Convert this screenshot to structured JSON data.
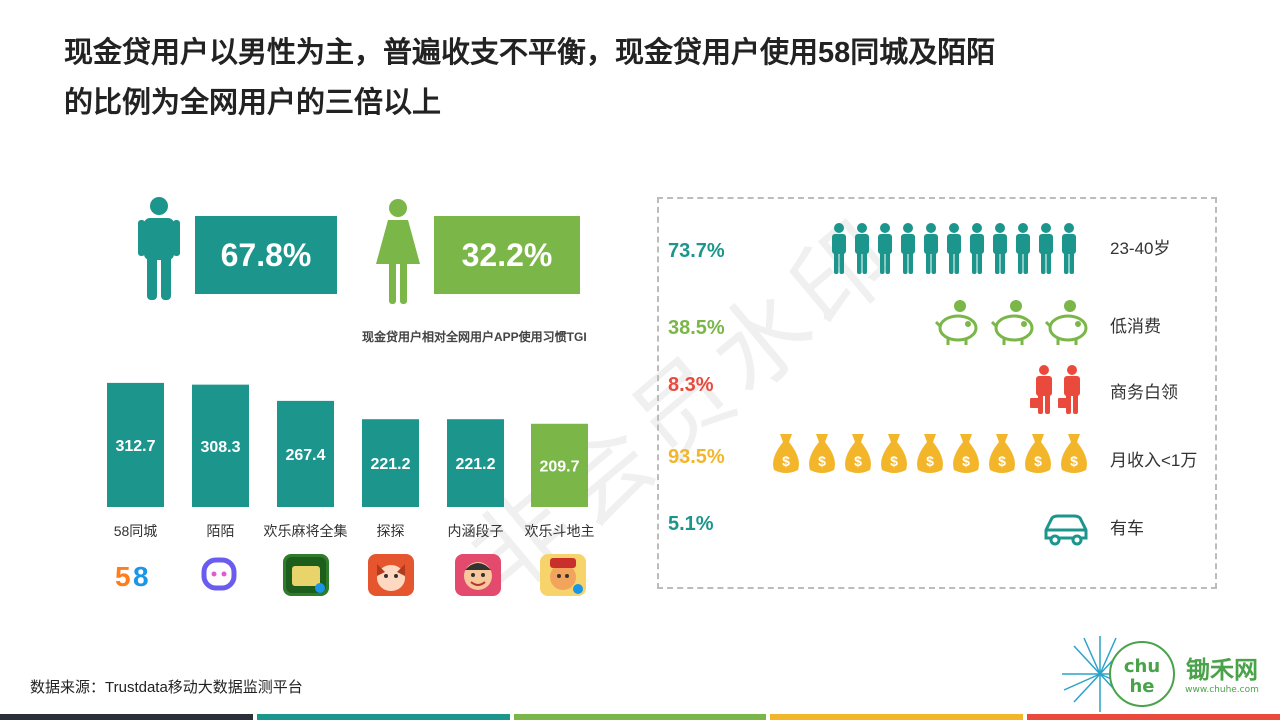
{
  "title": "现金贷用户以男性为主，普遍收支不平衡，现金贷用户使用58同城及陌陌的比例为全网用户的三倍以上",
  "title_line1": "现金贷用户以男性为主，普遍收支不平衡，现金贷用户使用58同城及陌陌",
  "title_line2": "的比例为全网用户的三倍以上",
  "watermark": "非会员水印",
  "gender": {
    "male_pct": "67.8%",
    "female_pct": "32.2%",
    "male_color": "#1c958c",
    "female_color": "#7ab648"
  },
  "chart_data": {
    "type": "bar",
    "title": "现金贷用户相对全网用户APP使用习惯TGI",
    "categories": [
      "58同城",
      "陌陌",
      "欢乐麻将全集",
      "探探",
      "内涵段子",
      "欢乐斗地主"
    ],
    "values": [
      312.7,
      308.3,
      267.4,
      221.2,
      221.2,
      209.7
    ],
    "colors": [
      "#1c958c",
      "#1c958c",
      "#1c958c",
      "#1c958c",
      "#1c958c",
      "#7ab648"
    ],
    "ylim": [
      0,
      320
    ]
  },
  "stats": [
    {
      "pct": "73.7%",
      "label": "23-40岁",
      "color": "#1c958c",
      "icon": "person-icon"
    },
    {
      "pct": "38.5%",
      "label": "低消费",
      "color": "#7ab648",
      "icon": "piggy-bank-icon"
    },
    {
      "pct": "8.3%",
      "label": "商务白领",
      "color": "#ea4a3c",
      "icon": "businessman-icon"
    },
    {
      "pct": "93.5%",
      "label": "月收入<1万",
      "color": "#f3b62b",
      "icon": "money-bag-icon"
    },
    {
      "pct": "5.1%",
      "label": "有车",
      "color": "#1c958c",
      "icon": "car-icon"
    }
  ],
  "source": "数据来源：Trustdata移动大数据监测平台",
  "logo": {
    "text": "锄禾网",
    "url_text": "www.chuhe.com"
  },
  "footer_colors": [
    "#2b2f3a",
    "#1c958c",
    "#7ab648",
    "#f3b62b",
    "#ea4a3c"
  ]
}
